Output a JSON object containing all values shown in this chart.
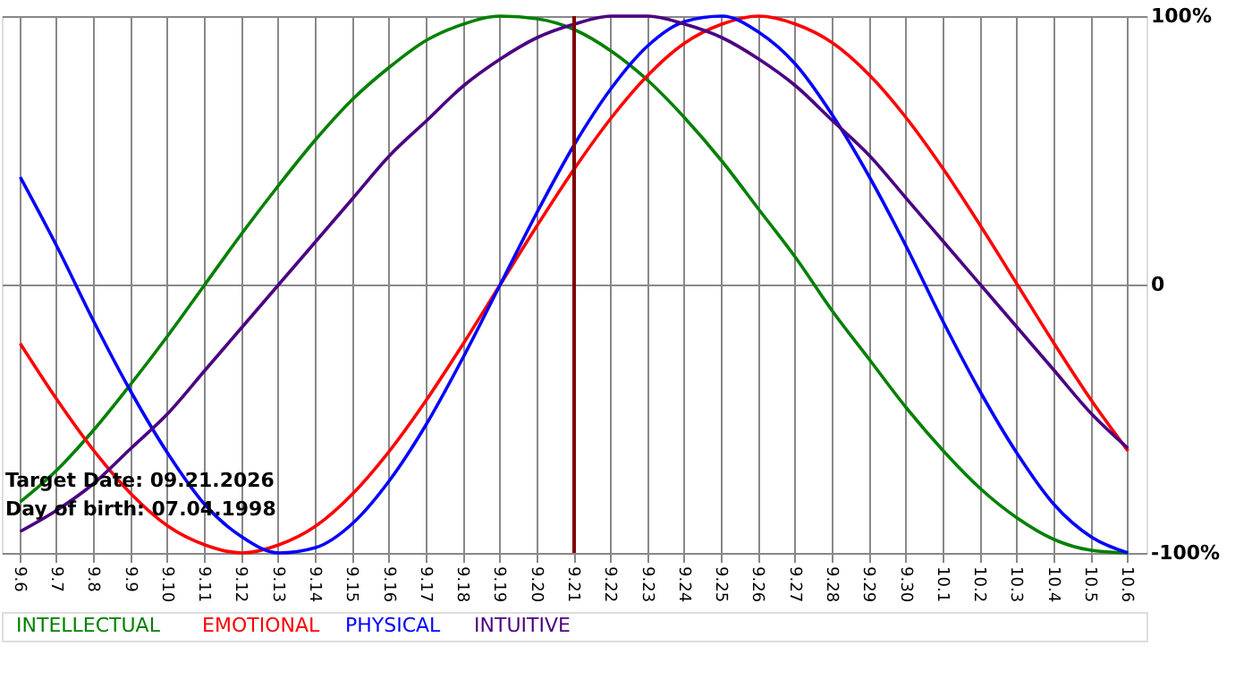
{
  "chart_data": {
    "type": "line",
    "categories": [
      "9.6",
      "9.7",
      "9.8",
      "9.9",
      "9.10",
      "9.11",
      "9.12",
      "9.13",
      "9.14",
      "9.15",
      "9.16",
      "9.17",
      "9.18",
      "9.19",
      "9.20",
      "9.21",
      "9.22",
      "9.23",
      "9.24",
      "9.25",
      "9.26",
      "9.27",
      "9.28",
      "9.29",
      "9.30",
      "10.1",
      "10.2",
      "10.3",
      "10.4",
      "10.5",
      "10.6"
    ],
    "series": [
      {
        "name": "INTELLECTUAL",
        "color": "#008000",
        "values": [
          -81,
          -69,
          -54,
          -37,
          -19,
          0,
          19,
          37,
          54,
          69,
          81,
          91,
          97,
          100,
          99,
          95,
          87,
          76,
          62,
          46,
          28,
          10,
          -10,
          -28,
          -46,
          -62,
          -76,
          -87,
          -95,
          -99,
          -100
        ]
      },
      {
        "name": "EMOTIONAL",
        "color": "#ff0000",
        "values": [
          -22,
          -43,
          -62,
          -78,
          -90,
          -97,
          -100,
          -97,
          -90,
          -78,
          -62,
          -43,
          -22,
          0,
          22,
          43,
          62,
          78,
          90,
          97,
          100,
          97,
          90,
          78,
          62,
          43,
          22,
          0,
          -22,
          -43,
          -62
        ]
      },
      {
        "name": "PHYSICAL",
        "color": "#0000ff",
        "values": [
          40,
          14,
          -14,
          -40,
          -63,
          -82,
          -94,
          -100,
          -98,
          -89,
          -73,
          -52,
          -27,
          0,
          27,
          52,
          73,
          89,
          98,
          100,
          94,
          82,
          63,
          40,
          14,
          -14,
          -40,
          -63,
          -82,
          -94,
          -100
        ]
      },
      {
        "name": "INTUITIVE",
        "color": "#4b0082",
        "values": [
          -92,
          -84,
          -74,
          -61,
          -48,
          -32,
          -16,
          0,
          16,
          32,
          48,
          61,
          74,
          84,
          92,
          97,
          100,
          100,
          97,
          92,
          84,
          74,
          61,
          48,
          32,
          16,
          0,
          -16,
          -32,
          -48,
          -61
        ]
      }
    ],
    "ylim": [
      -100,
      100
    ],
    "yticks": [
      {
        "value": -100,
        "label": "-100%"
      },
      0,
      {
        "value": 100,
        "label": "100%"
      }
    ],
    "ref_lines": [
      {
        "axis": "x",
        "value": "9.21",
        "color": "#800000"
      }
    ],
    "annotations": [
      "Target Date: 09.21.2026",
      "Day of birth: 07.04.1998"
    ],
    "grid": true,
    "legend": "bottom",
    "marker": "none",
    "line_style": "solid"
  }
}
